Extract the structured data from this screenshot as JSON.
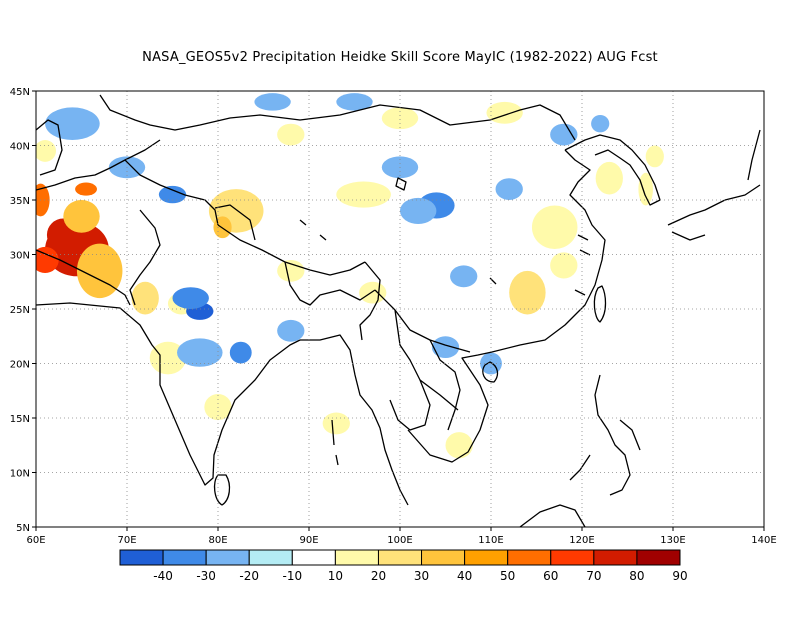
{
  "title": "NASA_GEOS5v2  Precipitation Heidke Skill Score MayIC (1982-2022) AUG Fcst",
  "map": {
    "lon_range": [
      60,
      140
    ],
    "lat_range": [
      5,
      45
    ],
    "lon_ticks": [
      {
        "value": 60,
        "label": "60E"
      },
      {
        "value": 70,
        "label": "70E"
      },
      {
        "value": 80,
        "label": "80E"
      },
      {
        "value": 90,
        "label": "90E"
      },
      {
        "value": 100,
        "label": "100E"
      },
      {
        "value": 110,
        "label": "110E"
      },
      {
        "value": 120,
        "label": "120E"
      },
      {
        "value": 130,
        "label": "130E"
      },
      {
        "value": 140,
        "label": "140E"
      }
    ],
    "lat_ticks": [
      {
        "value": 5,
        "label": "5N"
      },
      {
        "value": 10,
        "label": "10N"
      },
      {
        "value": 15,
        "label": "15N"
      },
      {
        "value": 20,
        "label": "20N"
      },
      {
        "value": 25,
        "label": "25N"
      },
      {
        "value": 30,
        "label": "30N"
      },
      {
        "value": 35,
        "label": "35N"
      },
      {
        "value": 40,
        "label": "40N"
      },
      {
        "value": 45,
        "label": "45N"
      }
    ],
    "grid": "dotted"
  },
  "colorbar": {
    "colors": [
      "#1f5fd6",
      "#3f8ae8",
      "#77b4f2",
      "#b4ecf4",
      "#ffffff",
      "#fffaaa",
      "#ffe27a",
      "#ffc43c",
      "#ffa000",
      "#ff6e00",
      "#ff3a00",
      "#d21c00",
      "#a00000"
    ],
    "labels": [
      "-40",
      "-30",
      "-20",
      "-10",
      "10",
      "20",
      "30",
      "40",
      "50",
      "60",
      "70",
      "80",
      "90"
    ]
  },
  "chart_data": {
    "type": "heatmap",
    "title": "NASA_GEOS5v2  Precipitation Heidke Skill Score MayIC (1982-2022) AUG Fcst",
    "x_range": [
      60,
      140
    ],
    "y_range": [
      5,
      45
    ],
    "levels": [
      -40,
      -30,
      -20,
      -10,
      10,
      20,
      30,
      40,
      50,
      60,
      70,
      80,
      90
    ],
    "patches": [
      {
        "lon": 64.5,
        "lat": 30.5,
        "rx": 3.5,
        "ry": 2.5,
        "value": 80
      },
      {
        "lon": 63,
        "lat": 31.8,
        "rx": 1.8,
        "ry": 1.5,
        "value": 85
      },
      {
        "lon": 61,
        "lat": 29.5,
        "rx": 1.5,
        "ry": 1.2,
        "value": 70
      },
      {
        "lon": 67,
        "lat": 28.5,
        "rx": 2.5,
        "ry": 2.5,
        "value": 40
      },
      {
        "lon": 65,
        "lat": 33.5,
        "rx": 2,
        "ry": 1.5,
        "value": 40
      },
      {
        "lon": 60.5,
        "lat": 35,
        "rx": 1,
        "ry": 1.5,
        "value": 60
      },
      {
        "lon": 65.5,
        "lat": 36,
        "rx": 1.2,
        "ry": 0.6,
        "value": 60
      },
      {
        "lon": 61,
        "lat": 39.5,
        "rx": 1.2,
        "ry": 1,
        "value": 20
      },
      {
        "lon": 82,
        "lat": 34,
        "rx": 3,
        "ry": 2,
        "value": 30
      },
      {
        "lon": 80.5,
        "lat": 32.5,
        "rx": 1,
        "ry": 1,
        "value": 40
      },
      {
        "lon": 75,
        "lat": 31,
        "rx": 2,
        "ry": 1.5,
        "value": 10
      },
      {
        "lon": 74.5,
        "lat": 20.5,
        "rx": 2,
        "ry": 1.5,
        "value": 20
      },
      {
        "lon": 80,
        "lat": 16,
        "rx": 1.5,
        "ry": 1.2,
        "value": 20
      },
      {
        "lon": 93,
        "lat": 14.5,
        "rx": 1.5,
        "ry": 1,
        "value": 20
      },
      {
        "lon": 106.5,
        "lat": 12.5,
        "rx": 1.5,
        "ry": 1.2,
        "value": 20
      },
      {
        "lon": 114,
        "lat": 26.5,
        "rx": 2,
        "ry": 2,
        "value": 30
      },
      {
        "lon": 117,
        "lat": 32.5,
        "rx": 2.5,
        "ry": 2,
        "value": 20
      },
      {
        "lon": 123,
        "lat": 37,
        "rx": 1.5,
        "ry": 1.5,
        "value": 20
      },
      {
        "lon": 127,
        "lat": 36,
        "rx": 0.8,
        "ry": 1.5,
        "value": 20
      },
      {
        "lon": 96,
        "lat": 35.5,
        "rx": 3,
        "ry": 1.2,
        "value": 20
      },
      {
        "lon": 100,
        "lat": 42.5,
        "rx": 2,
        "ry": 1,
        "value": 20
      },
      {
        "lon": 111.5,
        "lat": 43,
        "rx": 2,
        "ry": 1,
        "value": 20
      },
      {
        "lon": 109,
        "lat": 36.5,
        "rx": 1.5,
        "ry": 1,
        "value": 10
      },
      {
        "lon": 118,
        "lat": 29,
        "rx": 1.5,
        "ry": 1.2,
        "value": 20
      },
      {
        "lon": 88,
        "lat": 28.5,
        "rx": 1.5,
        "ry": 1,
        "value": 20
      },
      {
        "lon": 97,
        "lat": 26.5,
        "rx": 1.5,
        "ry": 1,
        "value": 20
      },
      {
        "lon": 128,
        "lat": 39,
        "rx": 1,
        "ry": 1,
        "value": 20
      },
      {
        "lon": 88,
        "lat": 41,
        "rx": 1.5,
        "ry": 1,
        "value": 20
      },
      {
        "lon": 76,
        "lat": 25.5,
        "rx": 1.5,
        "ry": 1,
        "value": 20
      },
      {
        "lon": 72,
        "lat": 26,
        "rx": 1.5,
        "ry": 1.5,
        "value": 30
      },
      {
        "lon": 86,
        "lat": 26,
        "rx": 1.5,
        "ry": 1,
        "value": 10
      },
      {
        "lon": 78,
        "lat": 24.8,
        "rx": 1.5,
        "ry": 0.8,
        "value": -30
      },
      {
        "lon": 77,
        "lat": 26,
        "rx": 2,
        "ry": 1,
        "value": -20
      },
      {
        "lon": 78,
        "lat": 21,
        "rx": 2.5,
        "ry": 1.3,
        "value": -10
      },
      {
        "lon": 82.5,
        "lat": 21,
        "rx": 1.2,
        "ry": 1,
        "value": -20
      },
      {
        "lon": 75,
        "lat": 35.5,
        "rx": 1.5,
        "ry": 0.8,
        "value": -20
      },
      {
        "lon": 64,
        "lat": 42,
        "rx": 3,
        "ry": 1.5,
        "value": -10
      },
      {
        "lon": 70,
        "lat": 38,
        "rx": 2,
        "ry": 1,
        "value": -10
      },
      {
        "lon": 104,
        "lat": 34.5,
        "rx": 2,
        "ry": 1.2,
        "value": -20
      },
      {
        "lon": 102,
        "lat": 34,
        "rx": 2,
        "ry": 1.2,
        "value": -10
      },
      {
        "lon": 100,
        "lat": 38,
        "rx": 2,
        "ry": 1,
        "value": -10
      },
      {
        "lon": 112,
        "lat": 36,
        "rx": 1.5,
        "ry": 1,
        "value": -10
      },
      {
        "lon": 107,
        "lat": 28,
        "rx": 1.5,
        "ry": 1,
        "value": -10
      },
      {
        "lon": 105,
        "lat": 21.5,
        "rx": 1.5,
        "ry": 1,
        "value": -10
      },
      {
        "lon": 110,
        "lat": 20,
        "rx": 1.2,
        "ry": 1,
        "value": -10
      },
      {
        "lon": 88,
        "lat": 23,
        "rx": 1.5,
        "ry": 1,
        "value": -10
      },
      {
        "lon": 86,
        "lat": 44,
        "rx": 2,
        "ry": 0.8,
        "value": -10
      },
      {
        "lon": 95,
        "lat": 44,
        "rx": 2,
        "ry": 0.8,
        "value": -10
      },
      {
        "lon": 118,
        "lat": 41,
        "rx": 1.5,
        "ry": 1,
        "value": -10
      },
      {
        "lon": 122,
        "lat": 42,
        "rx": 1,
        "ry": 0.8,
        "value": -10
      }
    ]
  }
}
